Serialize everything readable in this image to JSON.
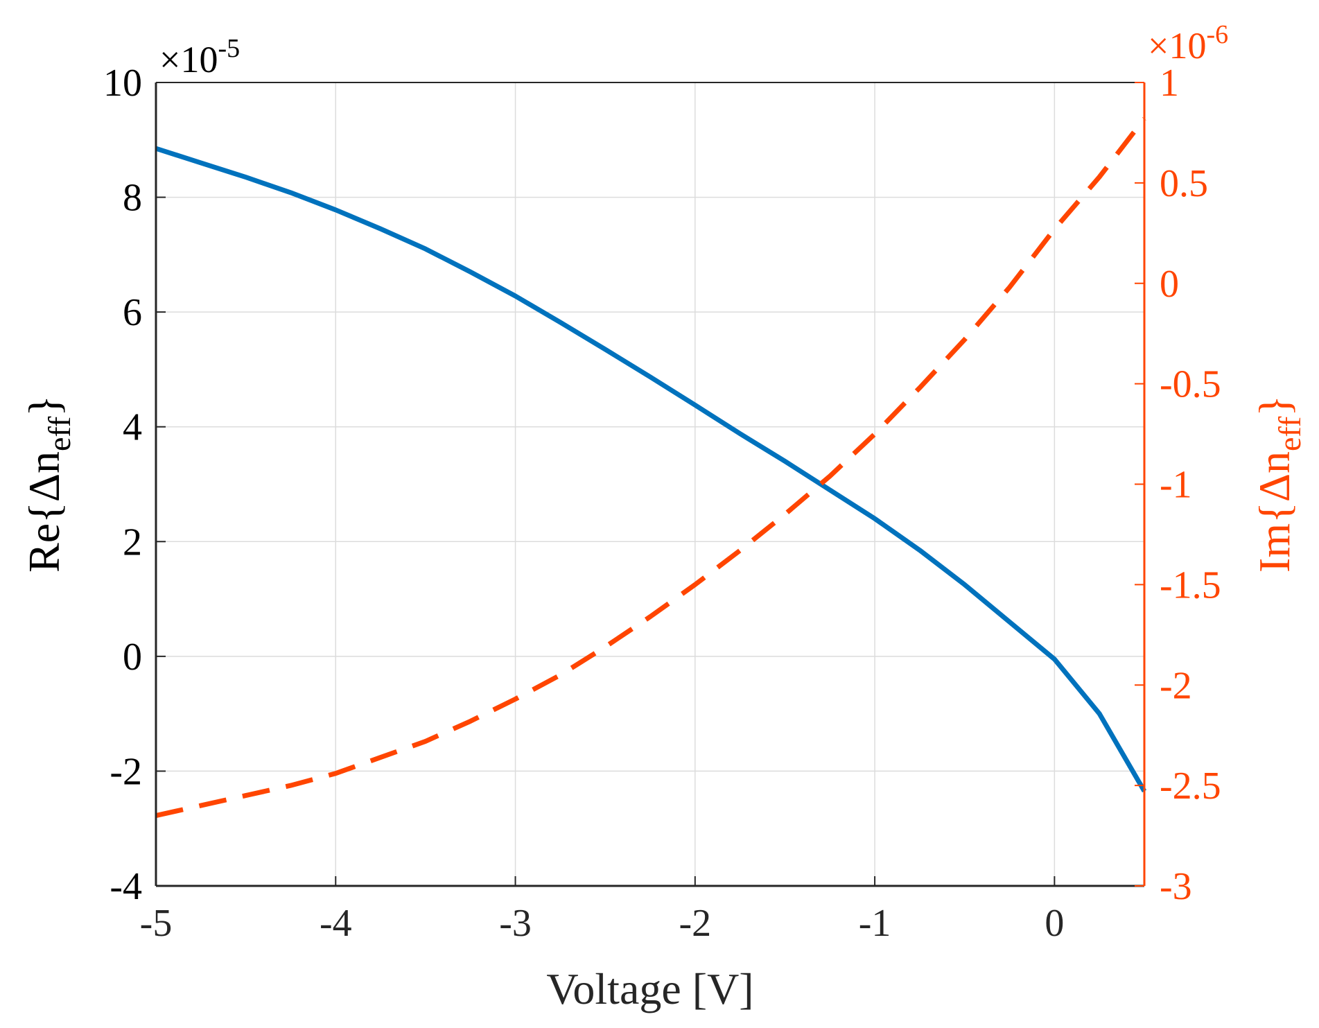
{
  "chart_data": {
    "type": "line",
    "xlabel": "Voltage [V]",
    "xlim": [
      -5,
      0.5
    ],
    "xticks": [
      -5,
      -4,
      -3,
      -2,
      -1,
      0
    ],
    "xtick_labels": [
      "-5",
      "-4",
      "-3",
      "-2",
      "-1",
      "0"
    ],
    "left_axis": {
      "label_prefix": "Re{Δn",
      "label_sub": "eff",
      "label_suffix": "}",
      "exponent_base": "×10",
      "exponent": "-5",
      "ylim": [
        -4,
        10
      ],
      "ticks": [
        -4,
        -2,
        0,
        2,
        4,
        6,
        8,
        10
      ],
      "tick_labels": [
        "-4",
        "-2",
        "0",
        "2",
        "4",
        "6",
        "8",
        "10"
      ],
      "color": "#000000"
    },
    "right_axis": {
      "label_prefix": "Im{Δn",
      "label_sub": "eff",
      "label_suffix": "}",
      "exponent_base": "×10",
      "exponent": "-6",
      "ylim": [
        -3,
        1
      ],
      "ticks": [
        -3,
        -2.5,
        -2,
        -1.5,
        -1,
        -0.5,
        0,
        0.5,
        1
      ],
      "tick_labels": [
        "-3",
        "-2.5",
        "-2",
        "-1.5",
        "-1",
        "-0.5",
        "0",
        "0.5",
        "1"
      ],
      "color": "#FF4500"
    },
    "grid": true,
    "series": [
      {
        "name": "Re{Δn_eff}",
        "axis": "left",
        "style": "solid",
        "color": "#0072BD",
        "x": [
          -5,
          -4.75,
          -4.5,
          -4.25,
          -4,
          -3.75,
          -3.5,
          -3.25,
          -3,
          -2.75,
          -2.5,
          -2.25,
          -2,
          -1.75,
          -1.5,
          -1.25,
          -1,
          -0.75,
          -0.5,
          -0.25,
          0,
          0.25,
          0.5
        ],
        "y": [
          8.85,
          8.6,
          8.35,
          8.08,
          7.78,
          7.45,
          7.1,
          6.7,
          6.28,
          5.82,
          5.35,
          4.87,
          4.38,
          3.88,
          3.4,
          2.9,
          2.4,
          1.85,
          1.25,
          0.6,
          -0.05,
          -1.0,
          -2.35
        ]
      },
      {
        "name": "Im{Δn_eff}",
        "axis": "right",
        "style": "dashed",
        "color": "#FF4500",
        "x": [
          -5,
          -4.75,
          -4.5,
          -4.25,
          -4,
          -3.75,
          -3.5,
          -3.25,
          -3,
          -2.75,
          -2.5,
          -2.25,
          -2,
          -1.75,
          -1.5,
          -1.25,
          -1,
          -0.75,
          -0.5,
          -0.25,
          0,
          0.25,
          0.5
        ],
        "y": [
          -2.65,
          -2.6,
          -2.55,
          -2.5,
          -2.44,
          -2.36,
          -2.28,
          -2.18,
          -2.07,
          -1.95,
          -1.81,
          -1.66,
          -1.5,
          -1.33,
          -1.15,
          -0.96,
          -0.75,
          -0.52,
          -0.28,
          -0.02,
          0.27,
          0.53,
          0.82
        ]
      }
    ]
  }
}
